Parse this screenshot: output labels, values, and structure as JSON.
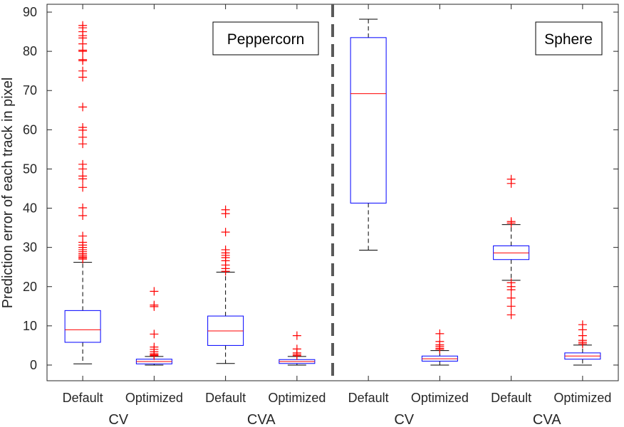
{
  "chart_data": {
    "type": "box",
    "ylabel": "Prediction error of each track in pixel",
    "ylim": [
      -4,
      92
    ],
    "yticks": [
      0,
      10,
      20,
      30,
      40,
      50,
      60,
      70,
      80,
      90
    ],
    "yticklabels": [
      "0",
      "10",
      "20",
      "30",
      "40",
      "50",
      "60",
      "70",
      "80",
      "90"
    ],
    "grid": false,
    "panel_labels": [
      "Peppercorn",
      "Sphere"
    ],
    "divider_after_position": 4,
    "groups": [
      "CV",
      "CVA",
      "CV",
      "CVA"
    ],
    "categories": [
      "Default",
      "Optimized",
      "Default",
      "Optimized",
      "Default",
      "Optimized",
      "Default",
      "Optimized"
    ],
    "colors": {
      "box": "#0000ff",
      "median": "#ff0000",
      "whisker": "#000000",
      "outlier": "#ff0000",
      "divider": "#595959",
      "axis": "#262626"
    },
    "boxes": [
      {
        "q1": 5.8,
        "median": 9.0,
        "q3": 13.9,
        "whisker_low": 0.3,
        "whisker_high": 26.2,
        "outliers": [
          27.0,
          27.3,
          27.6,
          28.0,
          28.4,
          28.9,
          29.4,
          30.0,
          30.6,
          31.3,
          32.9,
          38.1,
          40.1,
          45.3,
          47.5,
          48.2,
          50.0,
          51.2,
          56.4,
          58.1,
          59.9,
          60.6,
          65.8,
          73.4,
          75.0,
          77.6,
          77.9,
          80.0,
          80.3,
          81.9,
          83.4,
          84.0,
          85.0,
          86.0,
          86.6
        ]
      },
      {
        "q1": 0.3,
        "median": 0.9,
        "q3": 1.5,
        "whisker_low": 0.0,
        "whisker_high": 2.2,
        "outliers": [
          2.4,
          2.6,
          2.9,
          3.4,
          4.0,
          4.6,
          7.9,
          14.9,
          15.3,
          18.8
        ]
      },
      {
        "q1": 5.0,
        "median": 8.7,
        "q3": 12.5,
        "whisker_low": 0.4,
        "whisker_high": 23.7,
        "outliers": [
          23.9,
          24.6,
          25.5,
          26.6,
          27.4,
          28.0,
          28.6,
          29.4,
          33.9,
          38.6,
          39.6
        ]
      },
      {
        "q1": 0.4,
        "median": 0.9,
        "q3": 1.4,
        "whisker_low": 0.0,
        "whisker_high": 2.2,
        "outliers": [
          2.4,
          2.7,
          3.1,
          4.1,
          7.5
        ]
      },
      {
        "q1": 41.3,
        "median": 69.2,
        "q3": 83.5,
        "whisker_low": 29.3,
        "whisker_high": 88.2,
        "outliers": []
      },
      {
        "q1": 1.0,
        "median": 1.6,
        "q3": 2.3,
        "whisker_low": 0.0,
        "whisker_high": 3.7,
        "outliers": [
          4.0,
          4.3,
          4.8,
          5.2,
          6.0,
          8.0
        ]
      },
      {
        "q1": 26.9,
        "median": 28.6,
        "q3": 30.4,
        "whisker_low": 21.6,
        "whisker_high": 35.8,
        "outliers": [
          36.2,
          36.6,
          21.0,
          20.0,
          19.2,
          17.1,
          15.0,
          12.8,
          46.3,
          47.4
        ]
      },
      {
        "q1": 1.5,
        "median": 2.3,
        "q3": 3.1,
        "whisker_low": 0.0,
        "whisker_high": 5.1,
        "outliers": [
          5.4,
          5.8,
          6.3,
          7.5,
          9.0,
          10.3
        ]
      }
    ]
  }
}
